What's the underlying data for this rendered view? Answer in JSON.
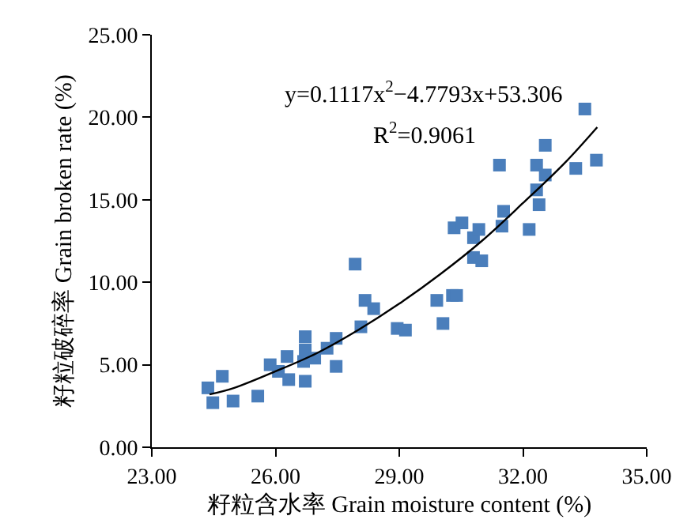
{
  "chart_data": {
    "type": "scatter",
    "xlabel": "籽粒含水率 Grain moisture content (%)",
    "ylabel": "籽粒破碎率 Grain broken rate (%)",
    "xlim": [
      23,
      35
    ],
    "xticks": [
      {
        "value": 23,
        "label": "23.00"
      },
      {
        "value": 26,
        "label": "26.00"
      },
      {
        "value": 29,
        "label": "29.00"
      },
      {
        "value": 32,
        "label": "32.00"
      },
      {
        "value": 35,
        "label": "35.00"
      }
    ],
    "ylim": [
      0,
      25
    ],
    "yticks": [
      {
        "value": 0,
        "label": "0.00"
      },
      {
        "value": 5,
        "label": "5.00"
      },
      {
        "value": 10,
        "label": "10.00"
      },
      {
        "value": 15,
        "label": "15.00"
      },
      {
        "value": 20,
        "label": "20.00"
      },
      {
        "value": 25,
        "label": "25.00"
      }
    ],
    "grid": false,
    "series": [
      {
        "color": "#4a7ebb",
        "marker": "square",
        "x": [
          24.36,
          24.48,
          24.71,
          24.97,
          25.57,
          25.87,
          26.07,
          26.28,
          26.32,
          26.68,
          26.72,
          26.72,
          26.72,
          26.95,
          27.25,
          27.47,
          27.47,
          27.93,
          28.17,
          28.38,
          28.07,
          28.95,
          29.15,
          29.91,
          30.06,
          30.29,
          30.39,
          30.33,
          30.52,
          30.8,
          30.93,
          30.8,
          31.0,
          31.43,
          31.53,
          31.49,
          32.15,
          32.33,
          32.33,
          32.39,
          32.54,
          32.54,
          33.28,
          33.5,
          33.78
        ],
        "values": [
          3.6,
          2.7,
          4.3,
          2.8,
          3.1,
          5.0,
          4.6,
          5.5,
          4.1,
          5.2,
          4.0,
          6.7,
          5.9,
          5.4,
          6.0,
          6.6,
          4.9,
          11.1,
          8.9,
          8.4,
          7.3,
          7.2,
          7.1,
          8.9,
          7.5,
          9.2,
          9.2,
          13.3,
          13.6,
          12.7,
          13.2,
          11.5,
          11.3,
          17.1,
          14.3,
          13.4,
          13.2,
          17.1,
          15.6,
          14.7,
          18.3,
          16.5,
          16.9,
          20.5,
          17.4
        ]
      },
      {
        "type": "line",
        "color": "#000000",
        "marker": "none",
        "line_style": "solid",
        "x": [
          24.4,
          25,
          26,
          27,
          28,
          29,
          30,
          31,
          32,
          33,
          33.8
        ],
        "values": [
          3.2,
          3.6,
          4.6,
          5.7,
          7.1,
          8.7,
          10.5,
          12.5,
          14.8,
          17.2,
          19.4
        ]
      }
    ],
    "annotations": [
      "y=0.1117x$^{2}$−4.7793x+53.306",
      "R$^{2}$=0.9061"
    ]
  }
}
